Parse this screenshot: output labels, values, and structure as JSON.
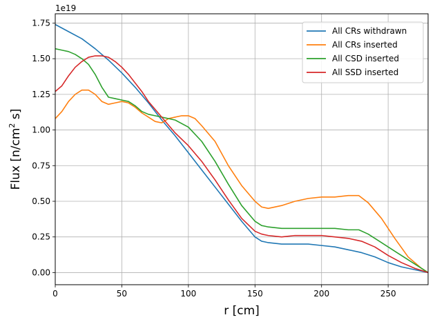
{
  "chart_data": {
    "type": "line",
    "xlabel": "r [cm]",
    "ylabel_main": "Flux [n/cm",
    "ylabel_sup": "2",
    "ylabel_end": " s]",
    "offset_text": "1e19",
    "xlim": [
      0,
      280
    ],
    "ylim": [
      -0.085,
      1.815
    ],
    "x_ticks": [
      0,
      50,
      100,
      150,
      200,
      250
    ],
    "y_ticks": [
      0.0,
      0.25,
      0.5,
      0.75,
      1.0,
      1.25,
      1.5,
      1.75
    ],
    "y_tick_labels": [
      "0.00",
      "0.25",
      "0.50",
      "0.75",
      "1.00",
      "1.25",
      "1.50",
      "1.75"
    ],
    "grid": true,
    "legend_position": "top-right",
    "series": [
      {
        "name": "All CRs withdrawn",
        "color": "#1f77b4",
        "x": [
          0,
          10,
          20,
          30,
          40,
          50,
          60,
          70,
          80,
          90,
          100,
          110,
          120,
          130,
          140,
          150,
          155,
          160,
          170,
          180,
          190,
          200,
          210,
          220,
          230,
          240,
          250,
          260,
          270,
          280
        ],
        "y": [
          1.74,
          1.69,
          1.64,
          1.57,
          1.49,
          1.4,
          1.3,
          1.19,
          1.07,
          0.96,
          0.84,
          0.72,
          0.6,
          0.48,
          0.36,
          0.25,
          0.22,
          0.21,
          0.2,
          0.2,
          0.2,
          0.19,
          0.18,
          0.16,
          0.14,
          0.11,
          0.07,
          0.04,
          0.02,
          0.0
        ]
      },
      {
        "name": "All CRs inserted",
        "color": "#ff7f0e",
        "x": [
          0,
          5,
          10,
          15,
          20,
          25,
          30,
          35,
          40,
          45,
          50,
          55,
          60,
          65,
          70,
          75,
          80,
          85,
          90,
          95,
          100,
          105,
          110,
          120,
          130,
          140,
          150,
          155,
          160,
          170,
          180,
          190,
          200,
          210,
          220,
          228,
          235,
          245,
          255,
          265,
          275,
          280
        ],
        "y": [
          1.08,
          1.13,
          1.2,
          1.25,
          1.28,
          1.28,
          1.25,
          1.2,
          1.18,
          1.19,
          1.2,
          1.19,
          1.16,
          1.12,
          1.09,
          1.06,
          1.05,
          1.08,
          1.09,
          1.1,
          1.1,
          1.08,
          1.03,
          0.92,
          0.75,
          0.61,
          0.5,
          0.46,
          0.45,
          0.47,
          0.5,
          0.52,
          0.53,
          0.53,
          0.54,
          0.54,
          0.49,
          0.38,
          0.24,
          0.11,
          0.03,
          0.0
        ]
      },
      {
        "name": "All CSD inserted",
        "color": "#2ca02c",
        "x": [
          0,
          5,
          10,
          15,
          20,
          25,
          30,
          35,
          40,
          45,
          50,
          55,
          60,
          65,
          70,
          75,
          80,
          85,
          90,
          100,
          110,
          120,
          130,
          140,
          150,
          155,
          160,
          170,
          180,
          190,
          200,
          210,
          220,
          228,
          235,
          245,
          255,
          265,
          275,
          280
        ],
        "y": [
          1.57,
          1.56,
          1.55,
          1.53,
          1.5,
          1.46,
          1.39,
          1.3,
          1.23,
          1.22,
          1.21,
          1.2,
          1.17,
          1.13,
          1.11,
          1.1,
          1.09,
          1.08,
          1.07,
          1.02,
          0.92,
          0.78,
          0.62,
          0.47,
          0.36,
          0.33,
          0.32,
          0.31,
          0.31,
          0.31,
          0.31,
          0.31,
          0.3,
          0.3,
          0.27,
          0.21,
          0.15,
          0.09,
          0.03,
          0.0
        ]
      },
      {
        "name": "All SSD inserted",
        "color": "#d62728",
        "x": [
          0,
          5,
          10,
          15,
          20,
          25,
          30,
          35,
          40,
          45,
          50,
          55,
          60,
          65,
          70,
          80,
          90,
          100,
          110,
          120,
          130,
          140,
          150,
          155,
          160,
          170,
          180,
          190,
          200,
          210,
          220,
          230,
          240,
          250,
          260,
          270,
          280
        ],
        "y": [
          1.27,
          1.31,
          1.38,
          1.44,
          1.48,
          1.51,
          1.52,
          1.52,
          1.51,
          1.48,
          1.44,
          1.39,
          1.33,
          1.27,
          1.2,
          1.09,
          0.98,
          0.89,
          0.78,
          0.65,
          0.51,
          0.38,
          0.29,
          0.27,
          0.26,
          0.25,
          0.26,
          0.26,
          0.26,
          0.25,
          0.24,
          0.22,
          0.18,
          0.12,
          0.07,
          0.03,
          0.0
        ]
      }
    ]
  }
}
